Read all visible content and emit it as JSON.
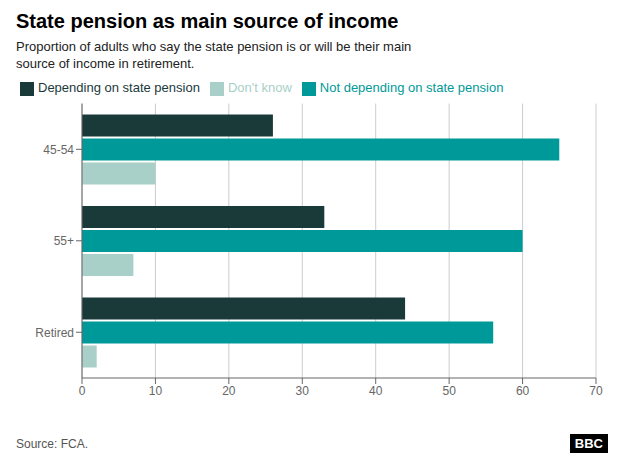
{
  "chart_data": {
    "type": "bar",
    "orientation": "horizontal",
    "title": "State pension as main source of income",
    "subtitle": "Proportion of adults who say the state pension is or will be their main\nsource of income in retirement.",
    "source": "Source: FCA.",
    "annotations": [
      "BBC"
    ],
    "categories": [
      "45-54",
      "55+",
      "Retired"
    ],
    "series": [
      {
        "name": "Depending on state pension",
        "color": "#1a3a3a",
        "values": [
          26,
          33,
          44
        ]
      },
      {
        "name": "Not depending on state pension",
        "color": "#009999",
        "values": [
          65,
          60,
          56
        ]
      },
      {
        "name": "Don't know",
        "color": "#a8cfc8",
        "values": [
          10,
          7,
          2
        ]
      }
    ],
    "xlim": [
      0,
      70
    ],
    "xticks": [
      0,
      10,
      20,
      30,
      40,
      50,
      60,
      70
    ],
    "grid": true,
    "legend": "upper left"
  }
}
